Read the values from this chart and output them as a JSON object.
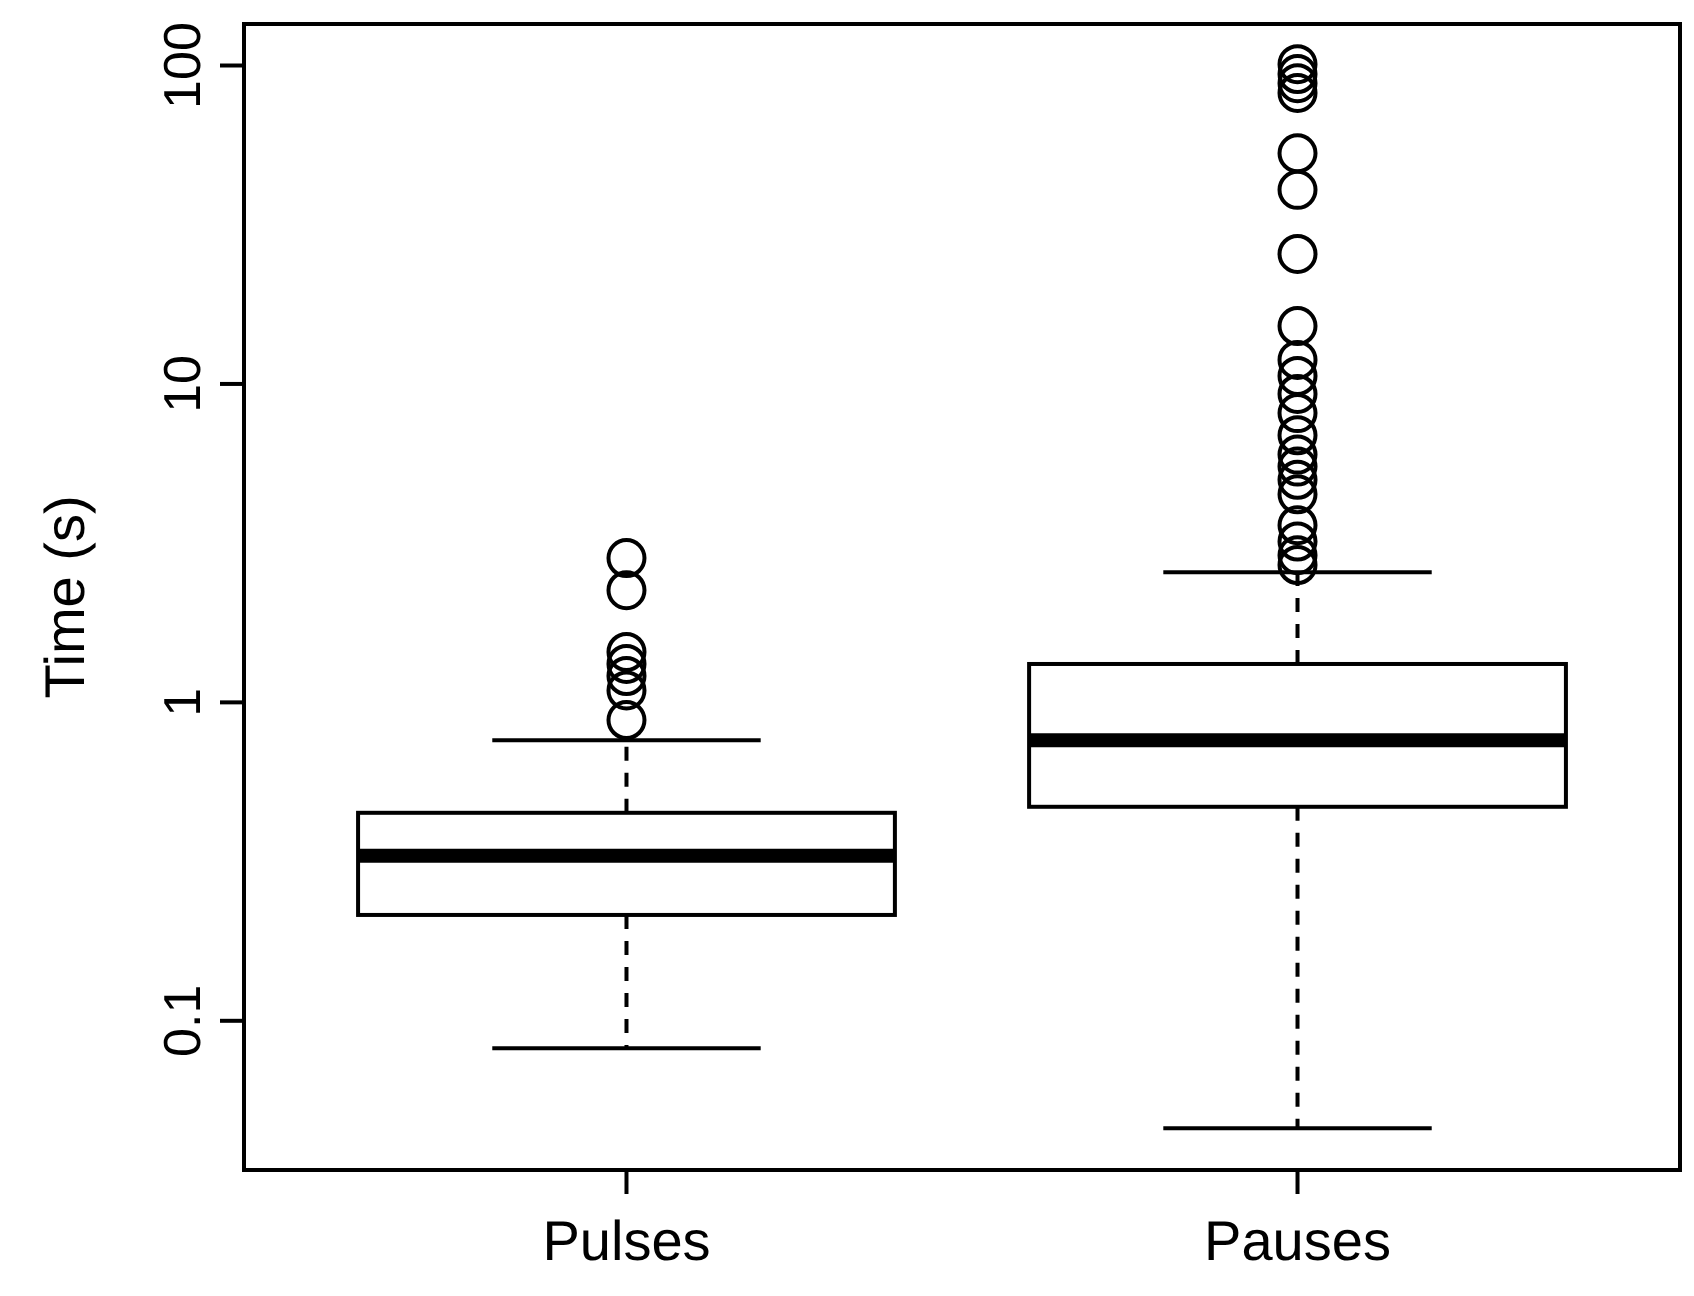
{
  "chart_data": {
    "type": "box",
    "ylabel": "Time (s)",
    "categories": [
      "Pulses",
      "Pauses"
    ],
    "log": true,
    "ylim": [
      0.034,
      135
    ],
    "yticks": [
      0.1,
      1,
      10,
      100
    ],
    "grid": false,
    "boxes": [
      {
        "low": 0.082,
        "q1": 0.215,
        "median": 0.33,
        "q3": 0.45,
        "high": 0.76,
        "outliers": [
          2.84,
          2.25,
          1.44,
          1.32,
          1.21,
          1.09,
          0.88
        ]
      },
      {
        "low": 0.046,
        "q1": 0.47,
        "median": 0.76,
        "q3": 1.32,
        "high": 2.56,
        "outliers": [
          101,
          94,
          88,
          82,
          53,
          40.7,
          25.6,
          15.2,
          11.9,
          10.6,
          9.3,
          8.1,
          6.9,
          6.0,
          5.5,
          5.0,
          4.5,
          3.6,
          3.2,
          2.9,
          2.7
        ]
      }
    ]
  }
}
